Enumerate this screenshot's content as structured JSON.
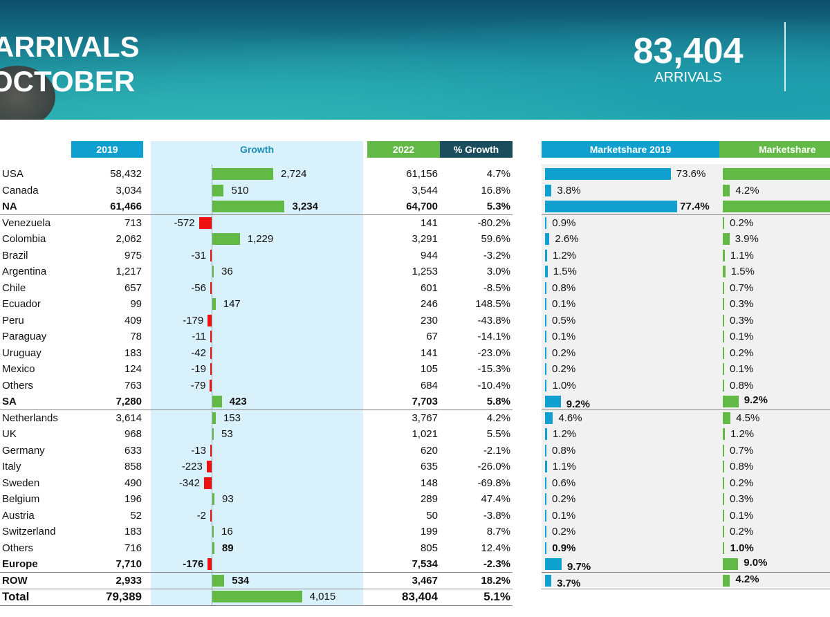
{
  "header": {
    "title_line1": "ARRIVALS",
    "title_line2": "OCTOBER",
    "total_arrivals": "83,404",
    "total_label": "ARRIVALS"
  },
  "columns": {
    "y2019": "2019",
    "growth": "Growth",
    "y2022": "2022",
    "pct_growth": "% Growth",
    "ms2019": "Marketshare 2019",
    "ms2022": "Marketshare"
  },
  "colors": {
    "blue": "#0fa0cf",
    "green": "#62b946",
    "red": "#ee1111",
    "dark": "#1b4d5c",
    "panel": "#d9f1fb"
  },
  "rows": [
    {
      "country": "USA",
      "v2019": "58,432",
      "growth": 2724,
      "growth_label": "2,724",
      "v2022": "61,156",
      "pct": "4.7%",
      "ms19": 73.6,
      "ms19_label": "73.6%",
      "ms22": 73.3,
      "ms22_label": ""
    },
    {
      "country": "Canada",
      "v2019": "3,034",
      "growth": 510,
      "growth_label": "510",
      "v2022": "3,544",
      "pct": "16.8%",
      "ms19": 3.8,
      "ms19_label": "3.8%",
      "ms22": 4.2,
      "ms22_label": "4.2%"
    },
    {
      "country": "NA",
      "v2019": "61,466",
      "growth": 3234,
      "growth_label": "3,234",
      "v2022": "64,700",
      "pct": "5.3%",
      "ms19": 77.4,
      "ms19_label": "77.4%",
      "ms22": 77.6,
      "ms22_label": "",
      "bold": true,
      "sep": true
    },
    {
      "country": "Venezuela",
      "v2019": "713",
      "growth": -572,
      "growth_label": "-572",
      "v2022": "141",
      "pct": "-80.2%",
      "ms19": 0.9,
      "ms19_label": "0.9%",
      "ms22": 0.2,
      "ms22_label": "0.2%"
    },
    {
      "country": "Colombia",
      "v2019": "2,062",
      "growth": 1229,
      "growth_label": "1,229",
      "v2022": "3,291",
      "pct": "59.6%",
      "ms19": 2.6,
      "ms19_label": "2.6%",
      "ms22": 3.9,
      "ms22_label": "3.9%"
    },
    {
      "country": "Brazil",
      "v2019": "975",
      "growth": -31,
      "growth_label": "-31",
      "v2022": "944",
      "pct": "-3.2%",
      "ms19": 1.2,
      "ms19_label": "1.2%",
      "ms22": 1.1,
      "ms22_label": "1.1%"
    },
    {
      "country": "Argentina",
      "v2019": "1,217",
      "growth": 36,
      "growth_label": "36",
      "v2022": "1,253",
      "pct": "3.0%",
      "ms19": 1.5,
      "ms19_label": "1.5%",
      "ms22": 1.5,
      "ms22_label": "1.5%"
    },
    {
      "country": "Chile",
      "v2019": "657",
      "growth": -56,
      "growth_label": "-56",
      "v2022": "601",
      "pct": "-8.5%",
      "ms19": 0.8,
      "ms19_label": "0.8%",
      "ms22": 0.7,
      "ms22_label": "0.7%"
    },
    {
      "country": "Ecuador",
      "v2019": "99",
      "growth": 147,
      "growth_label": "147",
      "v2022": "246",
      "pct": "148.5%",
      "ms19": 0.1,
      "ms19_label": "0.1%",
      "ms22": 0.3,
      "ms22_label": "0.3%"
    },
    {
      "country": "Peru",
      "v2019": "409",
      "growth": -179,
      "growth_label": "-179",
      "v2022": "230",
      "pct": "-43.8%",
      "ms19": 0.5,
      "ms19_label": "0.5%",
      "ms22": 0.3,
      "ms22_label": "0.3%"
    },
    {
      "country": "Paraguay",
      "v2019": "78",
      "growth": -11,
      "growth_label": "-11",
      "v2022": "67",
      "pct": "-14.1%",
      "ms19": 0.1,
      "ms19_label": "0.1%",
      "ms22": 0.1,
      "ms22_label": "0.1%"
    },
    {
      "country": "Uruguay",
      "v2019": "183",
      "growth": -42,
      "growth_label": "-42",
      "v2022": "141",
      "pct": "-23.0%",
      "ms19": 0.2,
      "ms19_label": "0.2%",
      "ms22": 0.2,
      "ms22_label": "0.2%"
    },
    {
      "country": "Mexico",
      "v2019": "124",
      "growth": -19,
      "growth_label": "-19",
      "v2022": "105",
      "pct": "-15.3%",
      "ms19": 0.2,
      "ms19_label": "0.2%",
      "ms22": 0.1,
      "ms22_label": "0.1%"
    },
    {
      "country": "Others",
      "v2019": "763",
      "growth": -79,
      "growth_label": "-79",
      "v2022": "684",
      "pct": "-10.4%",
      "ms19": 1.0,
      "ms19_label": "1.0%",
      "ms22": 0.8,
      "ms22_label": "0.8%"
    },
    {
      "country": "SA",
      "v2019": "7,280",
      "growth": 423,
      "growth_label": "423",
      "v2022": "7,703",
      "pct": "5.8%",
      "ms19": 9.2,
      "ms19_label": "9.2%",
      "ms22": 9.2,
      "ms22_label": "9.2%",
      "bold": true,
      "sep": true
    },
    {
      "country": "Netherlands",
      "v2019": "3,614",
      "growth": 153,
      "growth_label": "153",
      "v2022": "3,767",
      "pct": "4.2%",
      "ms19": 4.6,
      "ms19_label": "4.6%",
      "ms22": 4.5,
      "ms22_label": "4.5%"
    },
    {
      "country": "UK",
      "v2019": "968",
      "growth": 53,
      "growth_label": "53",
      "v2022": "1,021",
      "pct": "5.5%",
      "ms19": 1.2,
      "ms19_label": "1.2%",
      "ms22": 1.2,
      "ms22_label": "1.2%"
    },
    {
      "country": "Germany",
      "v2019": "633",
      "growth": -13,
      "growth_label": "-13",
      "v2022": "620",
      "pct": "-2.1%",
      "ms19": 0.8,
      "ms19_label": "0.8%",
      "ms22": 0.7,
      "ms22_label": "0.7%"
    },
    {
      "country": "Italy",
      "v2019": "858",
      "growth": -223,
      "growth_label": "-223",
      "v2022": "635",
      "pct": "-26.0%",
      "ms19": 1.1,
      "ms19_label": "1.1%",
      "ms22": 0.8,
      "ms22_label": "0.8%"
    },
    {
      "country": "Sweden",
      "v2019": "490",
      "growth": -342,
      "growth_label": "-342",
      "v2022": "148",
      "pct": "-69.8%",
      "ms19": 0.6,
      "ms19_label": "0.6%",
      "ms22": 0.2,
      "ms22_label": "0.2%"
    },
    {
      "country": "Belgium",
      "v2019": "196",
      "growth": 93,
      "growth_label": "93",
      "v2022": "289",
      "pct": "47.4%",
      "ms19": 0.2,
      "ms19_label": "0.2%",
      "ms22": 0.3,
      "ms22_label": "0.3%"
    },
    {
      "country": "Austria",
      "v2019": "52",
      "growth": -2,
      "growth_label": "-2",
      "v2022": "50",
      "pct": "-3.8%",
      "ms19": 0.1,
      "ms19_label": "0.1%",
      "ms22": 0.1,
      "ms22_label": "0.1%"
    },
    {
      "country": "Switzerland",
      "v2019": "183",
      "growth": 16,
      "growth_label": "16",
      "v2022": "199",
      "pct": "8.7%",
      "ms19": 0.2,
      "ms19_label": "0.2%",
      "ms22": 0.2,
      "ms22_label": "0.2%"
    },
    {
      "country": "Others",
      "v2019": "716",
      "growth": 89,
      "growth_label": "89",
      "v2022": "805",
      "pct": "12.4%",
      "ms19": 0.9,
      "ms19_label": "0.9%",
      "ms22": 1.0,
      "ms22_label": "1.0%",
      "emph": true
    },
    {
      "country": "Europe",
      "v2019": "7,710",
      "growth": -176,
      "growth_label": "-176",
      "v2022": "7,534",
      "pct": "-2.3%",
      "ms19": 9.7,
      "ms19_label": "9.7%",
      "ms22": 9.0,
      "ms22_label": "9.0%",
      "bold": true,
      "sep": true
    },
    {
      "country": "ROW",
      "v2019": "2,933",
      "growth": 534,
      "growth_label": "534",
      "v2022": "3,467",
      "pct": "18.2%",
      "ms19": 3.7,
      "ms19_label": "3.7%",
      "ms22": 4.2,
      "ms22_label": "4.2%",
      "bold": true,
      "sep": true
    },
    {
      "country": "Total",
      "v2019": "79,389",
      "growth": 4015,
      "growth_label": "4,015",
      "v2022": "83,404",
      "pct": "5.1%",
      "bold": true,
      "total": true,
      "sep": true
    }
  ]
}
